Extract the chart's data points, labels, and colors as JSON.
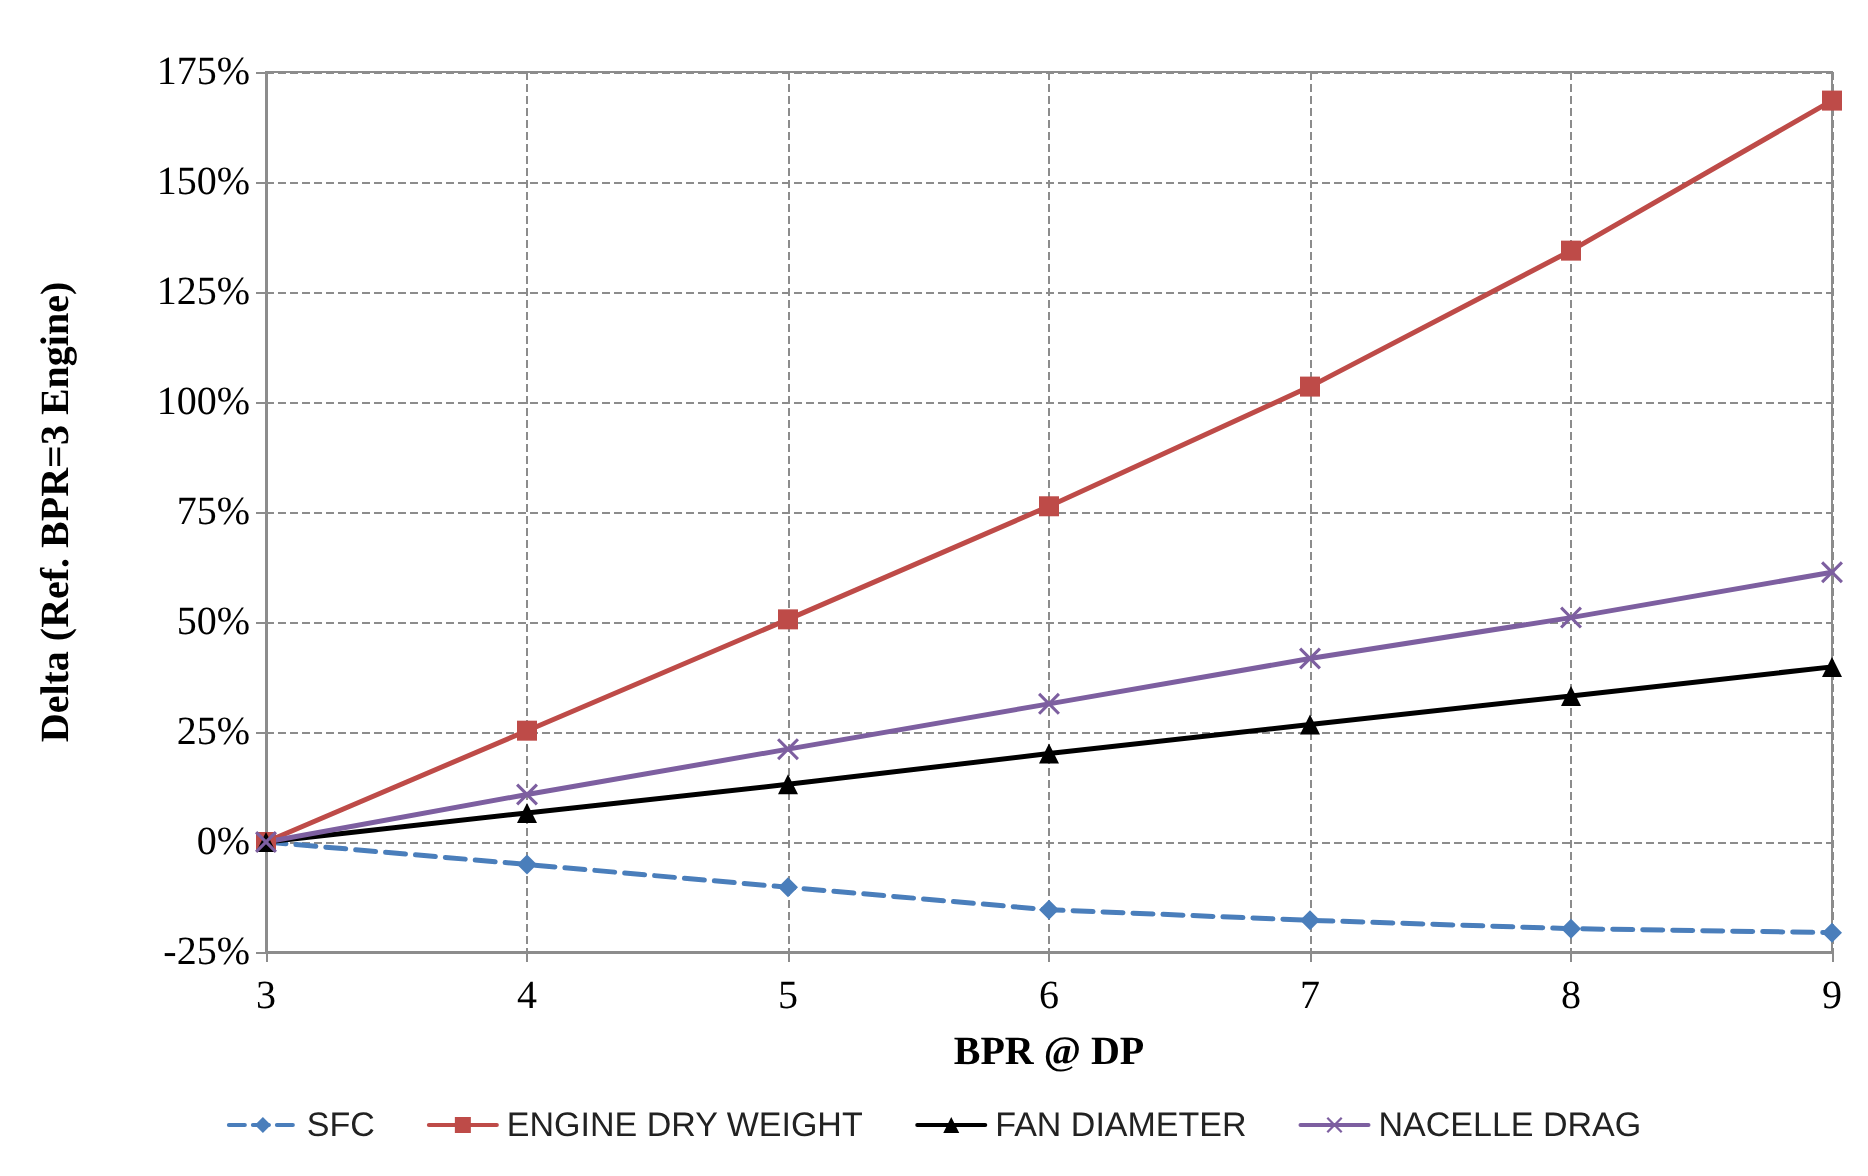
{
  "chart_data": {
    "type": "line",
    "xlabel": "BPR @ DP",
    "ylabel": "Delta (Ref. BPR=3 Engine)",
    "x": [
      3,
      4,
      5,
      6,
      7,
      8,
      9
    ],
    "xlim": [
      3,
      9
    ],
    "xticks": [
      3,
      4,
      5,
      6,
      7,
      8,
      9
    ],
    "ylim": [
      -25,
      175
    ],
    "yticks": [
      {
        "value": -25,
        "label": "-25%"
      },
      {
        "value": 0,
        "label": "0%"
      },
      {
        "value": 25,
        "label": "25%"
      },
      {
        "value": 50,
        "label": "50%"
      },
      {
        "value": 75,
        "label": "75%"
      },
      {
        "value": 100,
        "label": "100%"
      },
      {
        "value": 125,
        "label": "125%"
      },
      {
        "value": 150,
        "label": "150%"
      },
      {
        "value": 175,
        "label": "175%"
      }
    ],
    "grid": true,
    "legend": "bottom",
    "series": [
      {
        "name": "SFC",
        "color": "#4a7ebb",
        "marker": "diamond",
        "line_style": "dashed",
        "values": [
          0,
          -5.1,
          -10.3,
          -15.4,
          -17.8,
          -19.7,
          -20.6
        ]
      },
      {
        "name": "ENGINE DRY WEIGHT",
        "color": "#be4b48",
        "marker": "square",
        "line_style": "solid",
        "values": [
          0,
          25.3,
          50.6,
          76.3,
          103.5,
          134.4,
          168.5
        ]
      },
      {
        "name": "FAN DIAMETER",
        "color": "#000000",
        "marker": "triangle",
        "line_style": "solid",
        "values": [
          0,
          6.6,
          13.1,
          20.1,
          26.7,
          33.2,
          39.8
        ]
      },
      {
        "name": "NACELLE DRAG",
        "color": "#7d5fa0",
        "marker": "cross",
        "line_style": "solid",
        "values": [
          0,
          10.8,
          21.1,
          31.4,
          41.7,
          51,
          61.3
        ]
      }
    ]
  }
}
